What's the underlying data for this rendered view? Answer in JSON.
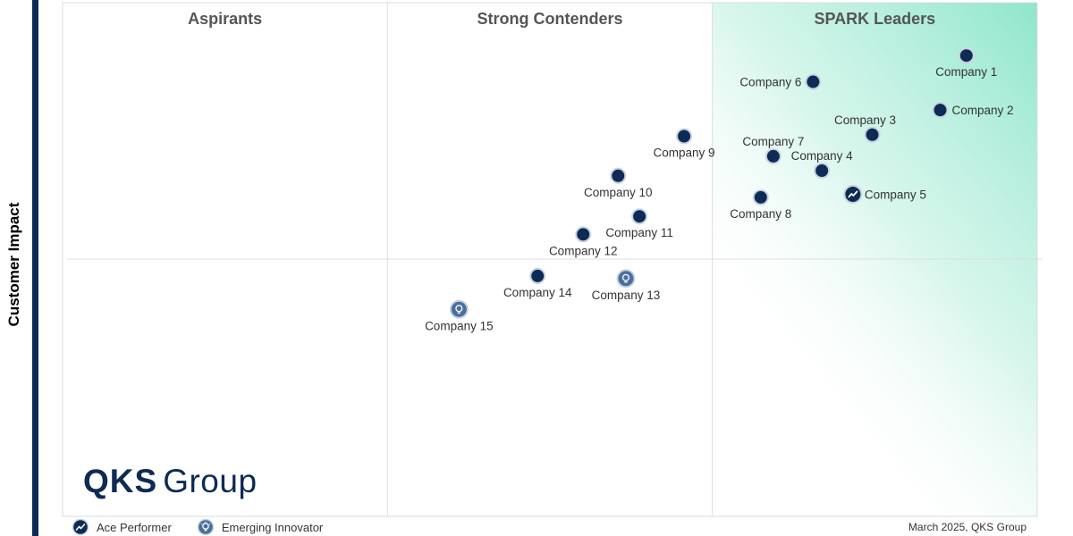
{
  "chart_data": {
    "type": "scatter",
    "title": "",
    "ylabel": "Customer Impact",
    "xlabel": "",
    "quadrants": [
      {
        "name": "Aspirants"
      },
      {
        "name": "Strong Contenders"
      },
      {
        "name": "SPARK Leaders"
      }
    ],
    "points": [
      {
        "name": "Company 1",
        "x": 0.927,
        "y": 0.897,
        "marker": "default",
        "label_pos": "below"
      },
      {
        "name": "Company 2",
        "x": 0.9,
        "y": 0.791,
        "marker": "default",
        "label_pos": "right"
      },
      {
        "name": "Company 3",
        "x": 0.83,
        "y": 0.743,
        "marker": "default",
        "label_pos": "above-left"
      },
      {
        "name": "Company 4",
        "x": 0.778,
        "y": 0.673,
        "marker": "default",
        "label_pos": "above"
      },
      {
        "name": "Company 5",
        "x": 0.81,
        "y": 0.627,
        "marker": "ace",
        "label_pos": "right"
      },
      {
        "name": "Company 6",
        "x": 0.769,
        "y": 0.846,
        "marker": "default",
        "label_pos": "left"
      },
      {
        "name": "Company 7",
        "x": 0.728,
        "y": 0.701,
        "marker": "default",
        "label_pos": "above"
      },
      {
        "name": "Company 8",
        "x": 0.715,
        "y": 0.621,
        "marker": "default",
        "label_pos": "below"
      },
      {
        "name": "Company 9",
        "x": 0.636,
        "y": 0.74,
        "marker": "default",
        "label_pos": "below"
      },
      {
        "name": "Company 10",
        "x": 0.568,
        "y": 0.663,
        "marker": "default",
        "label_pos": "below"
      },
      {
        "name": "Company 11",
        "x": 0.59,
        "y": 0.584,
        "marker": "default",
        "label_pos": "below"
      },
      {
        "name": "Company 12",
        "x": 0.532,
        "y": 0.549,
        "marker": "default",
        "label_pos": "below"
      },
      {
        "name": "Company 13",
        "x": 0.576,
        "y": 0.463,
        "marker": "innovator",
        "label_pos": "below"
      },
      {
        "name": "Company 14",
        "x": 0.485,
        "y": 0.468,
        "marker": "default",
        "label_pos": "below"
      },
      {
        "name": "Company 15",
        "x": 0.404,
        "y": 0.403,
        "marker": "innovator",
        "label_pos": "below"
      }
    ],
    "xlim": [
      0,
      1
    ],
    "ylim": [
      0,
      1
    ],
    "grid": true,
    "legend": {
      "placement": "bottom-left",
      "entries": [
        {
          "key": "ace",
          "label": "Ace Performer"
        },
        {
          "key": "innovator",
          "label": "Emerging Innovator"
        }
      ]
    }
  },
  "brand": {
    "logo_bold": "QKS",
    "logo_light": "Group"
  },
  "footnote": "March 2025, QKS Group",
  "colors": {
    "marker_fill": "#0d2b55",
    "innovator_fill": "#4a6f9c",
    "leader_gradient": "#8ee6cc",
    "grid_line": "#dddddd",
    "axis_bar": "#0d2b55"
  }
}
